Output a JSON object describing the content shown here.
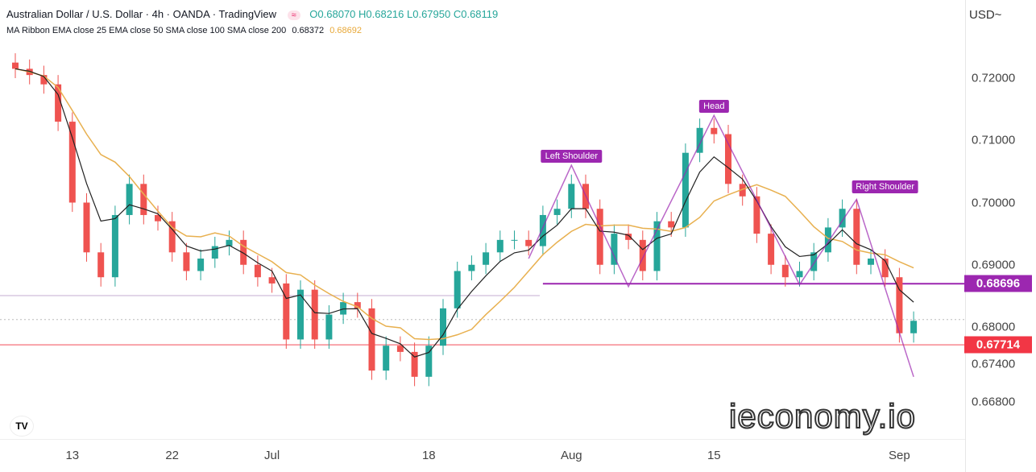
{
  "header": {
    "title": "Australian Dollar / U.S. Dollar · 4h · OANDA · TradingView",
    "toggle": "≈",
    "ohlc": "O0.68070 H0.68216 L0.67950 C0.68119"
  },
  "indicator": {
    "label": "MA Ribbon EMA close 25 EMA close 50 SMA close 100 SMA close 200",
    "value1": "0.68372",
    "value2": "0.68692"
  },
  "currency": "USD~",
  "watermark": "ieconomy.io",
  "logo": "TV",
  "chart_data": {
    "type": "candlestick",
    "title": "Australian Dollar / U.S. Dollar · 4h",
    "colors": {
      "up": "#26a69a",
      "down": "#ef5350",
      "ema_fast": "#222222",
      "ema_slow": "#e8b04f",
      "pattern": "#9c27b0",
      "support": "#f23645"
    },
    "dates": [
      "Jun 7",
      "Jun 8",
      "Jun 9",
      "Jun 10",
      "Jun 13",
      "Jun 14",
      "Jun 15",
      "Jun 16",
      "Jun 17",
      "Jun 20",
      "Jun 21",
      "Jun 22",
      "Jun 23",
      "Jun 24",
      "Jun 27",
      "Jun 28",
      "Jun 29",
      "Jun 30",
      "Jul 1",
      "Jul 4",
      "Jul 5",
      "Jul 6",
      "Jul 7",
      "Jul 8",
      "Jul 11",
      "Jul 12",
      "Jul 13",
      "Jul 14",
      "Jul 15",
      "Jul 18",
      "Jul 19",
      "Jul 20",
      "Jul 21",
      "Jul 22",
      "Jul 25",
      "Jul 26",
      "Jul 27",
      "Jul 28",
      "Jul 29",
      "Aug 1",
      "Aug 2",
      "Aug 3",
      "Aug 4",
      "Aug 5",
      "Aug 8",
      "Aug 9",
      "Aug 10",
      "Aug 11",
      "Aug 12",
      "Aug 15",
      "Aug 16",
      "Aug 17",
      "Aug 18",
      "Aug 19",
      "Aug 22",
      "Aug 23",
      "Aug 24",
      "Aug 25",
      "Aug 26",
      "Aug 29",
      "Aug 30",
      "Aug 31",
      "Sep 1",
      "Sep 2"
    ],
    "close": [
      0.7215,
      0.7205,
      0.719,
      0.713,
      0.7,
      0.692,
      0.688,
      0.698,
      0.703,
      0.698,
      0.697,
      0.692,
      0.689,
      0.691,
      0.693,
      0.694,
      0.69,
      0.688,
      0.687,
      0.678,
      0.686,
      0.678,
      0.682,
      0.684,
      0.683,
      0.673,
      0.677,
      0.676,
      0.672,
      0.677,
      0.683,
      0.689,
      0.69,
      0.692,
      0.694,
      0.694,
      0.693,
      0.698,
      0.699,
      0.703,
      0.699,
      0.69,
      0.695,
      0.694,
      0.689,
      0.697,
      0.696,
      0.708,
      0.712,
      0.711,
      0.703,
      0.701,
      0.695,
      0.69,
      0.688,
      0.689,
      0.692,
      0.696,
      0.699,
      0.69,
      0.691,
      0.688,
      0.679,
      0.681
    ],
    "x_ticks": [
      {
        "label": "13",
        "date": "Jun 13"
      },
      {
        "label": "22",
        "date": "Jun 22"
      },
      {
        "label": "Jul",
        "date": "Jul 1"
      },
      {
        "label": "18",
        "date": "Jul 18"
      },
      {
        "label": "Aug",
        "date": "Aug 1"
      },
      {
        "label": "15",
        "date": "Aug 15"
      },
      {
        "label": "Sep",
        "date": "Sep 1"
      }
    ],
    "y_ticks": [
      "0.72000",
      "0.71000",
      "0.70000",
      "0.69000",
      "0.68000",
      "0.67400",
      "0.66800"
    ],
    "ylim": [
      0.6645,
      0.7275
    ],
    "price_tags": [
      {
        "value": "0.68696",
        "color": "#9c27b0"
      },
      {
        "value": "0.67714",
        "color": "#f23645"
      }
    ],
    "current_price": 0.6812,
    "annotations": [
      {
        "label": "Left Shoulder",
        "date": "Aug 1",
        "price": 0.7075
      },
      {
        "label": "Head",
        "date": "Aug 15",
        "price": 0.7155
      },
      {
        "label": "Right Shoulder",
        "date": "Aug 31",
        "price": 0.7025
      }
    ],
    "pattern_path": [
      {
        "date": "Jul 27",
        "price": 0.691
      },
      {
        "date": "Aug 1",
        "price": 0.706
      },
      {
        "date": "Aug 5",
        "price": 0.6865
      },
      {
        "date": "Aug 15",
        "price": 0.714
      },
      {
        "date": "Aug 23",
        "price": 0.6868
      },
      {
        "date": "Aug 29",
        "price": 0.7005
      },
      {
        "date": "Sep 2",
        "price": 0.672
      }
    ],
    "neckline": {
      "from": "Jul 28",
      "price": 0.68696
    },
    "support": 0.67714
  }
}
